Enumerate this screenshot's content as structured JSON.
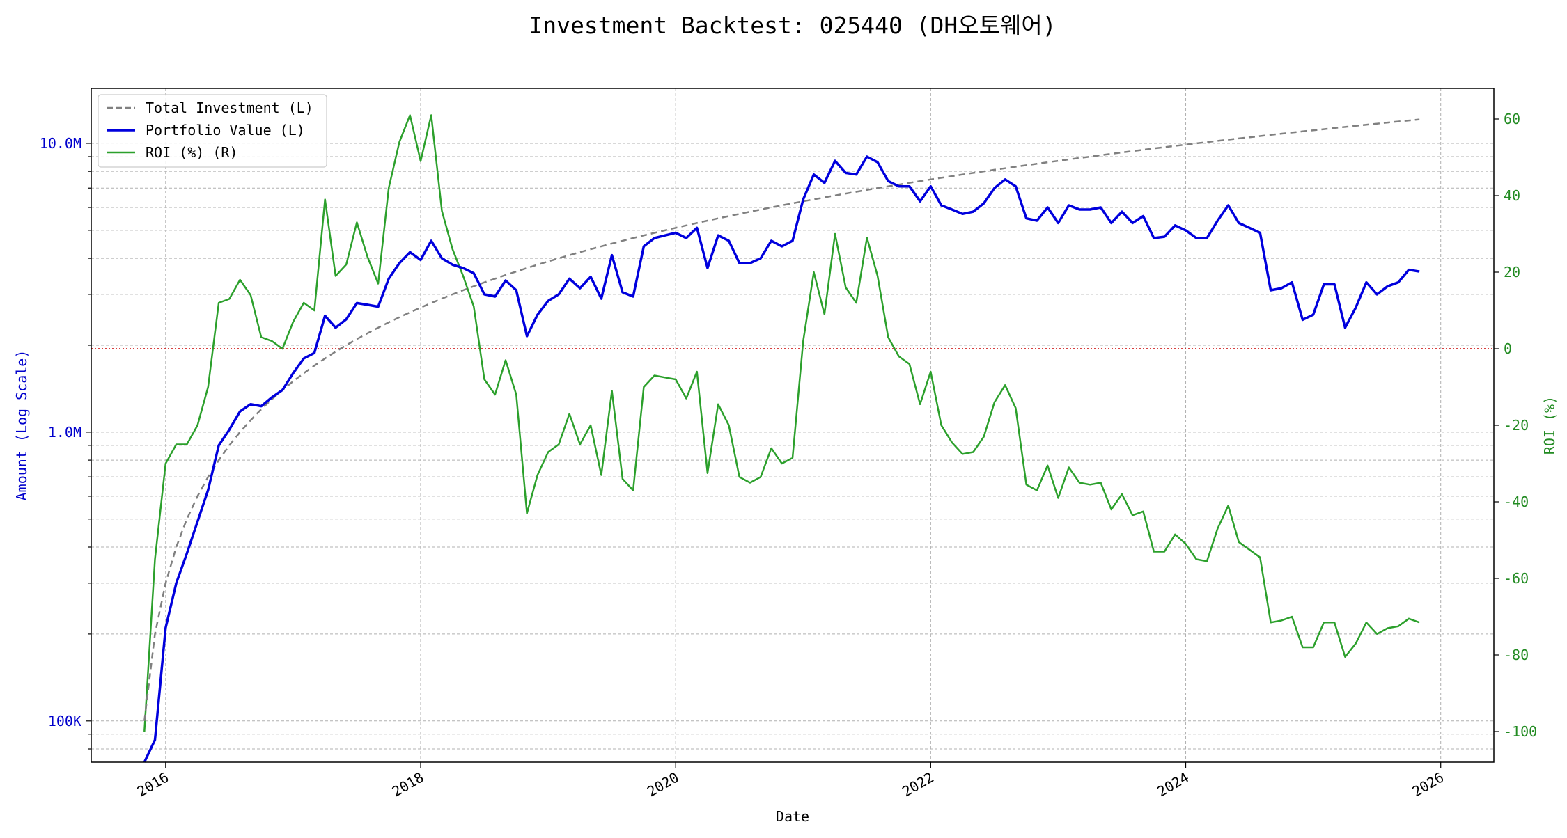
{
  "chart_data": {
    "type": "line",
    "title": "Investment Backtest: 025440 (DH오토웨어)",
    "xlabel": "Date",
    "ylabel_left": "Amount (Log Scale)",
    "ylabel_right": "ROI (%)",
    "left_scale": "log",
    "ylim_left": [
      72000,
      15500000
    ],
    "ylim_right": [
      -108,
      68
    ],
    "xlim": [
      "2015-06-01",
      "2026-06-01"
    ],
    "x_ticks": [
      "2016",
      "2018",
      "2020",
      "2022",
      "2024",
      "2026"
    ],
    "left_ticks": [
      {
        "value": 100000,
        "label": "100K"
      },
      {
        "value": 1000000,
        "label": "1.0M"
      },
      {
        "value": 10000000,
        "label": "10.0M"
      }
    ],
    "right_ticks": [
      60,
      40,
      20,
      0,
      -20,
      -40,
      -60,
      -80,
      -100
    ],
    "grid": true,
    "legend_position": "upper-left",
    "reference_line": {
      "axis": "right",
      "value": 0,
      "style": "dotted",
      "color": "#cc0000"
    },
    "legend": [
      {
        "label": "Total Investment (L)",
        "color": "#808080",
        "style": "dashed"
      },
      {
        "label": "Portfolio Value (L)",
        "color": "#0000dd",
        "style": "solid"
      },
      {
        "label": "ROI (%) (R)",
        "color": "#2ca02c",
        "style": "solid"
      }
    ],
    "colors": {
      "axis_left": "#0000cc",
      "axis_right": "#228b22",
      "reference": "#cc0000"
    },
    "dates": [
      "2015-11",
      "2015-12",
      "2016-01",
      "2016-02",
      "2016-03",
      "2016-04",
      "2016-05",
      "2016-06",
      "2016-07",
      "2016-08",
      "2016-09",
      "2016-10",
      "2016-11",
      "2016-12",
      "2017-01",
      "2017-02",
      "2017-03",
      "2017-04",
      "2017-05",
      "2017-06",
      "2017-07",
      "2017-08",
      "2017-09",
      "2017-10",
      "2017-11",
      "2017-12",
      "2018-01",
      "2018-02",
      "2018-03",
      "2018-04",
      "2018-05",
      "2018-06",
      "2018-07",
      "2018-08",
      "2018-09",
      "2018-10",
      "2018-11",
      "2018-12",
      "2019-01",
      "2019-02",
      "2019-03",
      "2019-04",
      "2019-05",
      "2019-06",
      "2019-07",
      "2019-08",
      "2019-09",
      "2019-10",
      "2019-11",
      "2019-12",
      "2020-01",
      "2020-02",
      "2020-03",
      "2020-04",
      "2020-05",
      "2020-06",
      "2020-07",
      "2020-08",
      "2020-09",
      "2020-10",
      "2020-11",
      "2020-12",
      "2021-01",
      "2021-02",
      "2021-03",
      "2021-04",
      "2021-05",
      "2021-06",
      "2021-07",
      "2021-08",
      "2021-09",
      "2021-10",
      "2021-11",
      "2021-12",
      "2022-01",
      "2022-02",
      "2022-03",
      "2022-04",
      "2022-05",
      "2022-06",
      "2022-07",
      "2022-08",
      "2022-09",
      "2022-10",
      "2022-11",
      "2022-12",
      "2023-01",
      "2023-02",
      "2023-03",
      "2023-04",
      "2023-05",
      "2023-06",
      "2023-07",
      "2023-08",
      "2023-09",
      "2023-10",
      "2023-11",
      "2023-12",
      "2024-01",
      "2024-02",
      "2024-03",
      "2024-04",
      "2024-05",
      "2024-06",
      "2024-07",
      "2024-08",
      "2024-09",
      "2024-10",
      "2024-11",
      "2024-12",
      "2025-01",
      "2025-02",
      "2025-03",
      "2025-04",
      "2025-05",
      "2025-06",
      "2025-07",
      "2025-08",
      "2025-09",
      "2025-10",
      "2025-11"
    ],
    "series": [
      {
        "name": "Total Investment (L)",
        "axis": "left",
        "values": [
          100000,
          200000,
          300000,
          400000,
          500000,
          600000,
          700000,
          800000,
          900000,
          1000000,
          1100000,
          1200000,
          1300000,
          1400000,
          1500000,
          1600000,
          1700000,
          1800000,
          1900000,
          2000000,
          2100000,
          2200000,
          2300000,
          2400000,
          2500000,
          2600000,
          2700000,
          2800000,
          2900000,
          3000000,
          3100000,
          3200000,
          3300000,
          3400000,
          3500000,
          3600000,
          3700000,
          3800000,
          3900000,
          4000000,
          4100000,
          4200000,
          4300000,
          4400000,
          4500000,
          4600000,
          4700000,
          4800000,
          4900000,
          5000000,
          5100000,
          5200000,
          5300000,
          5400000,
          5500000,
          5600000,
          5700000,
          5800000,
          5900000,
          6000000,
          6100000,
          6200000,
          6300000,
          6400000,
          6500000,
          6600000,
          6700000,
          6800000,
          6900000,
          7000000,
          7100000,
          7200000,
          7300000,
          7400000,
          7500000,
          7600000,
          7700000,
          7800000,
          7900000,
          8000000,
          8100000,
          8200000,
          8300000,
          8400000,
          8500000,
          8600000,
          8700000,
          8800000,
          8900000,
          9000000,
          9100000,
          9200000,
          9300000,
          9400000,
          9500000,
          9600000,
          9700000,
          9800000,
          9900000,
          10000000,
          10100000,
          10200000,
          10300000,
          10400000,
          10500000,
          10600000,
          10700000,
          10800000,
          10900000,
          11000000,
          11100000,
          11200000,
          11300000,
          11400000,
          11500000,
          11600000,
          11700000,
          11800000,
          11900000,
          12000000,
          12100000
        ]
      },
      {
        "name": "Portfolio Value (L)",
        "axis": "left",
        "values": [
          65000,
          86000,
          210000,
          300000,
          380000,
          490000,
          630000,
          900000,
          1020000,
          1180000,
          1250000,
          1230000,
          1320000,
          1400000,
          1600000,
          1800000,
          1880000,
          2530000,
          2300000,
          2460000,
          2800000,
          2760000,
          2720000,
          3400000,
          3850000,
          4200000,
          3950000,
          4600000,
          4000000,
          3800000,
          3700000,
          3550000,
          3000000,
          2950000,
          3350000,
          3100000,
          2150000,
          2550000,
          2850000,
          3000000,
          3400000,
          3150000,
          3450000,
          2900000,
          4100000,
          3050000,
          2950000,
          4400000,
          4700000,
          4800000,
          4900000,
          4700000,
          5100000,
          3700000,
          4800000,
          4600000,
          3850000,
          3850000,
          4000000,
          4600000,
          4400000,
          4600000,
          6400000,
          7800000,
          7300000,
          8700000,
          7900000,
          7800000,
          9000000,
          8600000,
          7400000,
          7100000,
          7100000,
          6300000,
          7100000,
          6100000,
          5900000,
          5700000,
          5800000,
          6200000,
          7000000,
          7500000,
          7100000,
          5500000,
          5400000,
          6000000,
          5300000,
          6100000,
          5900000,
          5900000,
          6000000,
          5300000,
          5800000,
          5300000,
          5600000,
          4700000,
          4750000,
          5200000,
          5000000,
          4700000,
          4700000,
          5400000,
          6100000,
          5300000,
          5100000,
          4900000,
          3100000,
          3150000,
          3300000,
          2450000,
          2550000,
          3250000,
          3250000,
          2300000,
          2700000,
          3300000,
          3000000,
          3200000,
          3300000,
          3650000,
          3600000
        ]
      },
      {
        "name": "ROI (%) (R)",
        "axis": "right",
        "values": [
          -100,
          -55,
          -30,
          -25,
          -25,
          -20,
          -10,
          12,
          13,
          18,
          14,
          3,
          2,
          0,
          7,
          12,
          10,
          39,
          19,
          22,
          33,
          24,
          17,
          42,
          54,
          61,
          49,
          61,
          36,
          26,
          19,
          11,
          -8,
          -12,
          -3,
          -12,
          -43,
          -33,
          -27,
          -25,
          -17,
          -25,
          -20,
          -33,
          -11,
          -34,
          -37,
          -10,
          -7,
          -7.5,
          -8,
          -13,
          -6,
          -32.5,
          -14.5,
          -20,
          -33.5,
          -35,
          -33.5,
          -26,
          -30,
          -28.5,
          2,
          20,
          9,
          30,
          16,
          12,
          29,
          19,
          3,
          -2,
          -4,
          -14.5,
          -6,
          -20,
          -24.5,
          -27.5,
          -27,
          -23,
          -14,
          -9.5,
          -15.5,
          -35.5,
          -37,
          -30.5,
          -39,
          -31,
          -35,
          -35.5,
          -35,
          -42,
          -38,
          -43.5,
          -42.5,
          -53,
          -53,
          -48.5,
          -51,
          -55,
          -55.5,
          -47,
          -41,
          -50.5,
          -52.5,
          -54.5,
          -71.5,
          -71,
          -70,
          -78,
          -78,
          -71.5,
          -71.5,
          -80.5,
          -77,
          -71.5,
          -74.5,
          -73,
          -72.5,
          -70.5,
          -71.5
        ]
      }
    ]
  }
}
